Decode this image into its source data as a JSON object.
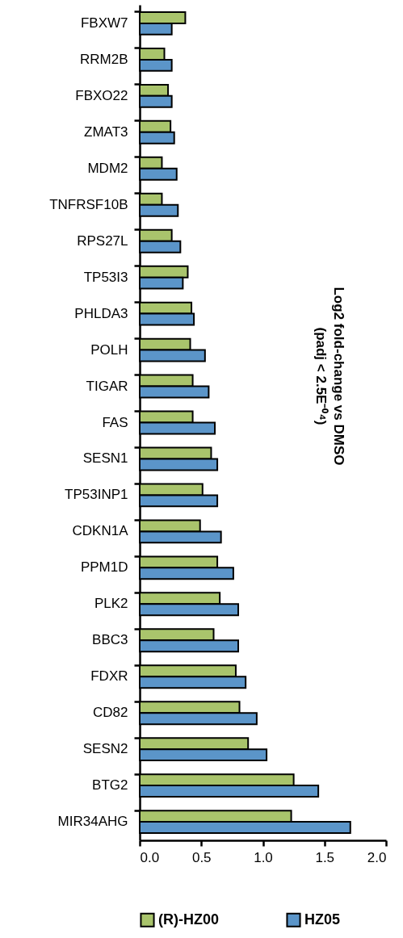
{
  "chart_data": {
    "type": "bar",
    "orientation": "horizontal",
    "annotations": [
      "Log2 fold-change vs DMSO\n(padj < 2.5E⁻⁰⁴)"
    ],
    "categories": [
      "FBXW7",
      "RRM2B",
      "FBXO22",
      "ZMAT3",
      "MDM2",
      "TNFRSF10B",
      "RPS27L",
      "TP53I3",
      "PHLDA3",
      "POLH",
      "TIGAR",
      "FAS",
      "SESN1",
      "TP53INP1",
      "CDKN1A",
      "PPM1D",
      "PLK2",
      "BBC3",
      "FDXR",
      "CD82",
      "SESN2",
      "BTG2",
      "MIR34AHG"
    ],
    "series": [
      {
        "name": "(R)-HZ00",
        "color": "#a9c46c",
        "values": [
          0.37,
          0.2,
          0.23,
          0.25,
          0.18,
          0.18,
          0.26,
          0.39,
          0.42,
          0.41,
          0.43,
          0.43,
          0.58,
          0.51,
          0.49,
          0.63,
          0.65,
          0.6,
          0.78,
          0.81,
          0.88,
          1.25,
          1.23
        ]
      },
      {
        "name": "HZ05",
        "color": "#5b95c9",
        "values": [
          0.26,
          0.26,
          0.26,
          0.28,
          0.3,
          0.31,
          0.33,
          0.35,
          0.44,
          0.53,
          0.56,
          0.61,
          0.63,
          0.63,
          0.66,
          0.76,
          0.8,
          0.8,
          0.86,
          0.95,
          1.03,
          1.45,
          1.71
        ]
      }
    ],
    "xlim": [
      0,
      2.0
    ],
    "xticks": [
      {
        "value": 0,
        "label": "0.0"
      },
      {
        "value": 0.5,
        "label": "0.5"
      },
      {
        "value": 1,
        "label": "1.0"
      },
      {
        "value": 1.5,
        "label": "1.5"
      },
      {
        "value": 2,
        "label": "2.0"
      }
    ],
    "grid": false,
    "legend": "bottom"
  }
}
